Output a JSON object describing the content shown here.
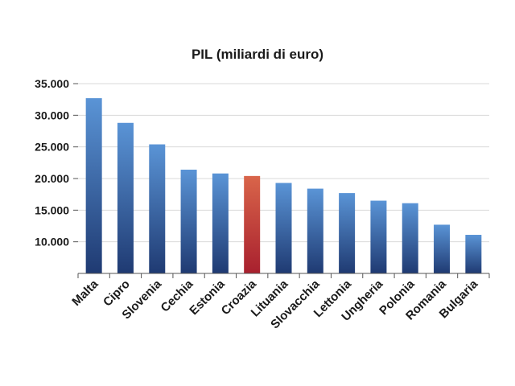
{
  "chart_data": {
    "type": "bar",
    "title": "PIL (miliardi di euro)",
    "categories": [
      "Malta",
      "Cipro",
      "Slovenia",
      "Cechia",
      "Estonia",
      "Croazia",
      "Lituania",
      "Slovacchia",
      "Lettonia",
      "Ungheria",
      "Polonia",
      "Romania",
      "Bulgaria"
    ],
    "values": [
      32700,
      28800,
      25400,
      21400,
      20800,
      20400,
      19300,
      18400,
      17700,
      16500,
      16100,
      12700,
      11100
    ],
    "highlight": "Croazia",
    "ylim": [
      5000,
      35000
    ],
    "yticks": [
      10000,
      15000,
      20000,
      25000,
      30000,
      35000
    ],
    "ytick_labels": [
      "10.000",
      "15.000",
      "20.000",
      "25.000",
      "30.000",
      "35.000"
    ],
    "grid": true,
    "colors": {
      "bar_top": "#5a94d6",
      "bar_bottom": "#1f3a72",
      "highlight_top": "#d9654a",
      "highlight_bottom": "#a8202e"
    }
  }
}
